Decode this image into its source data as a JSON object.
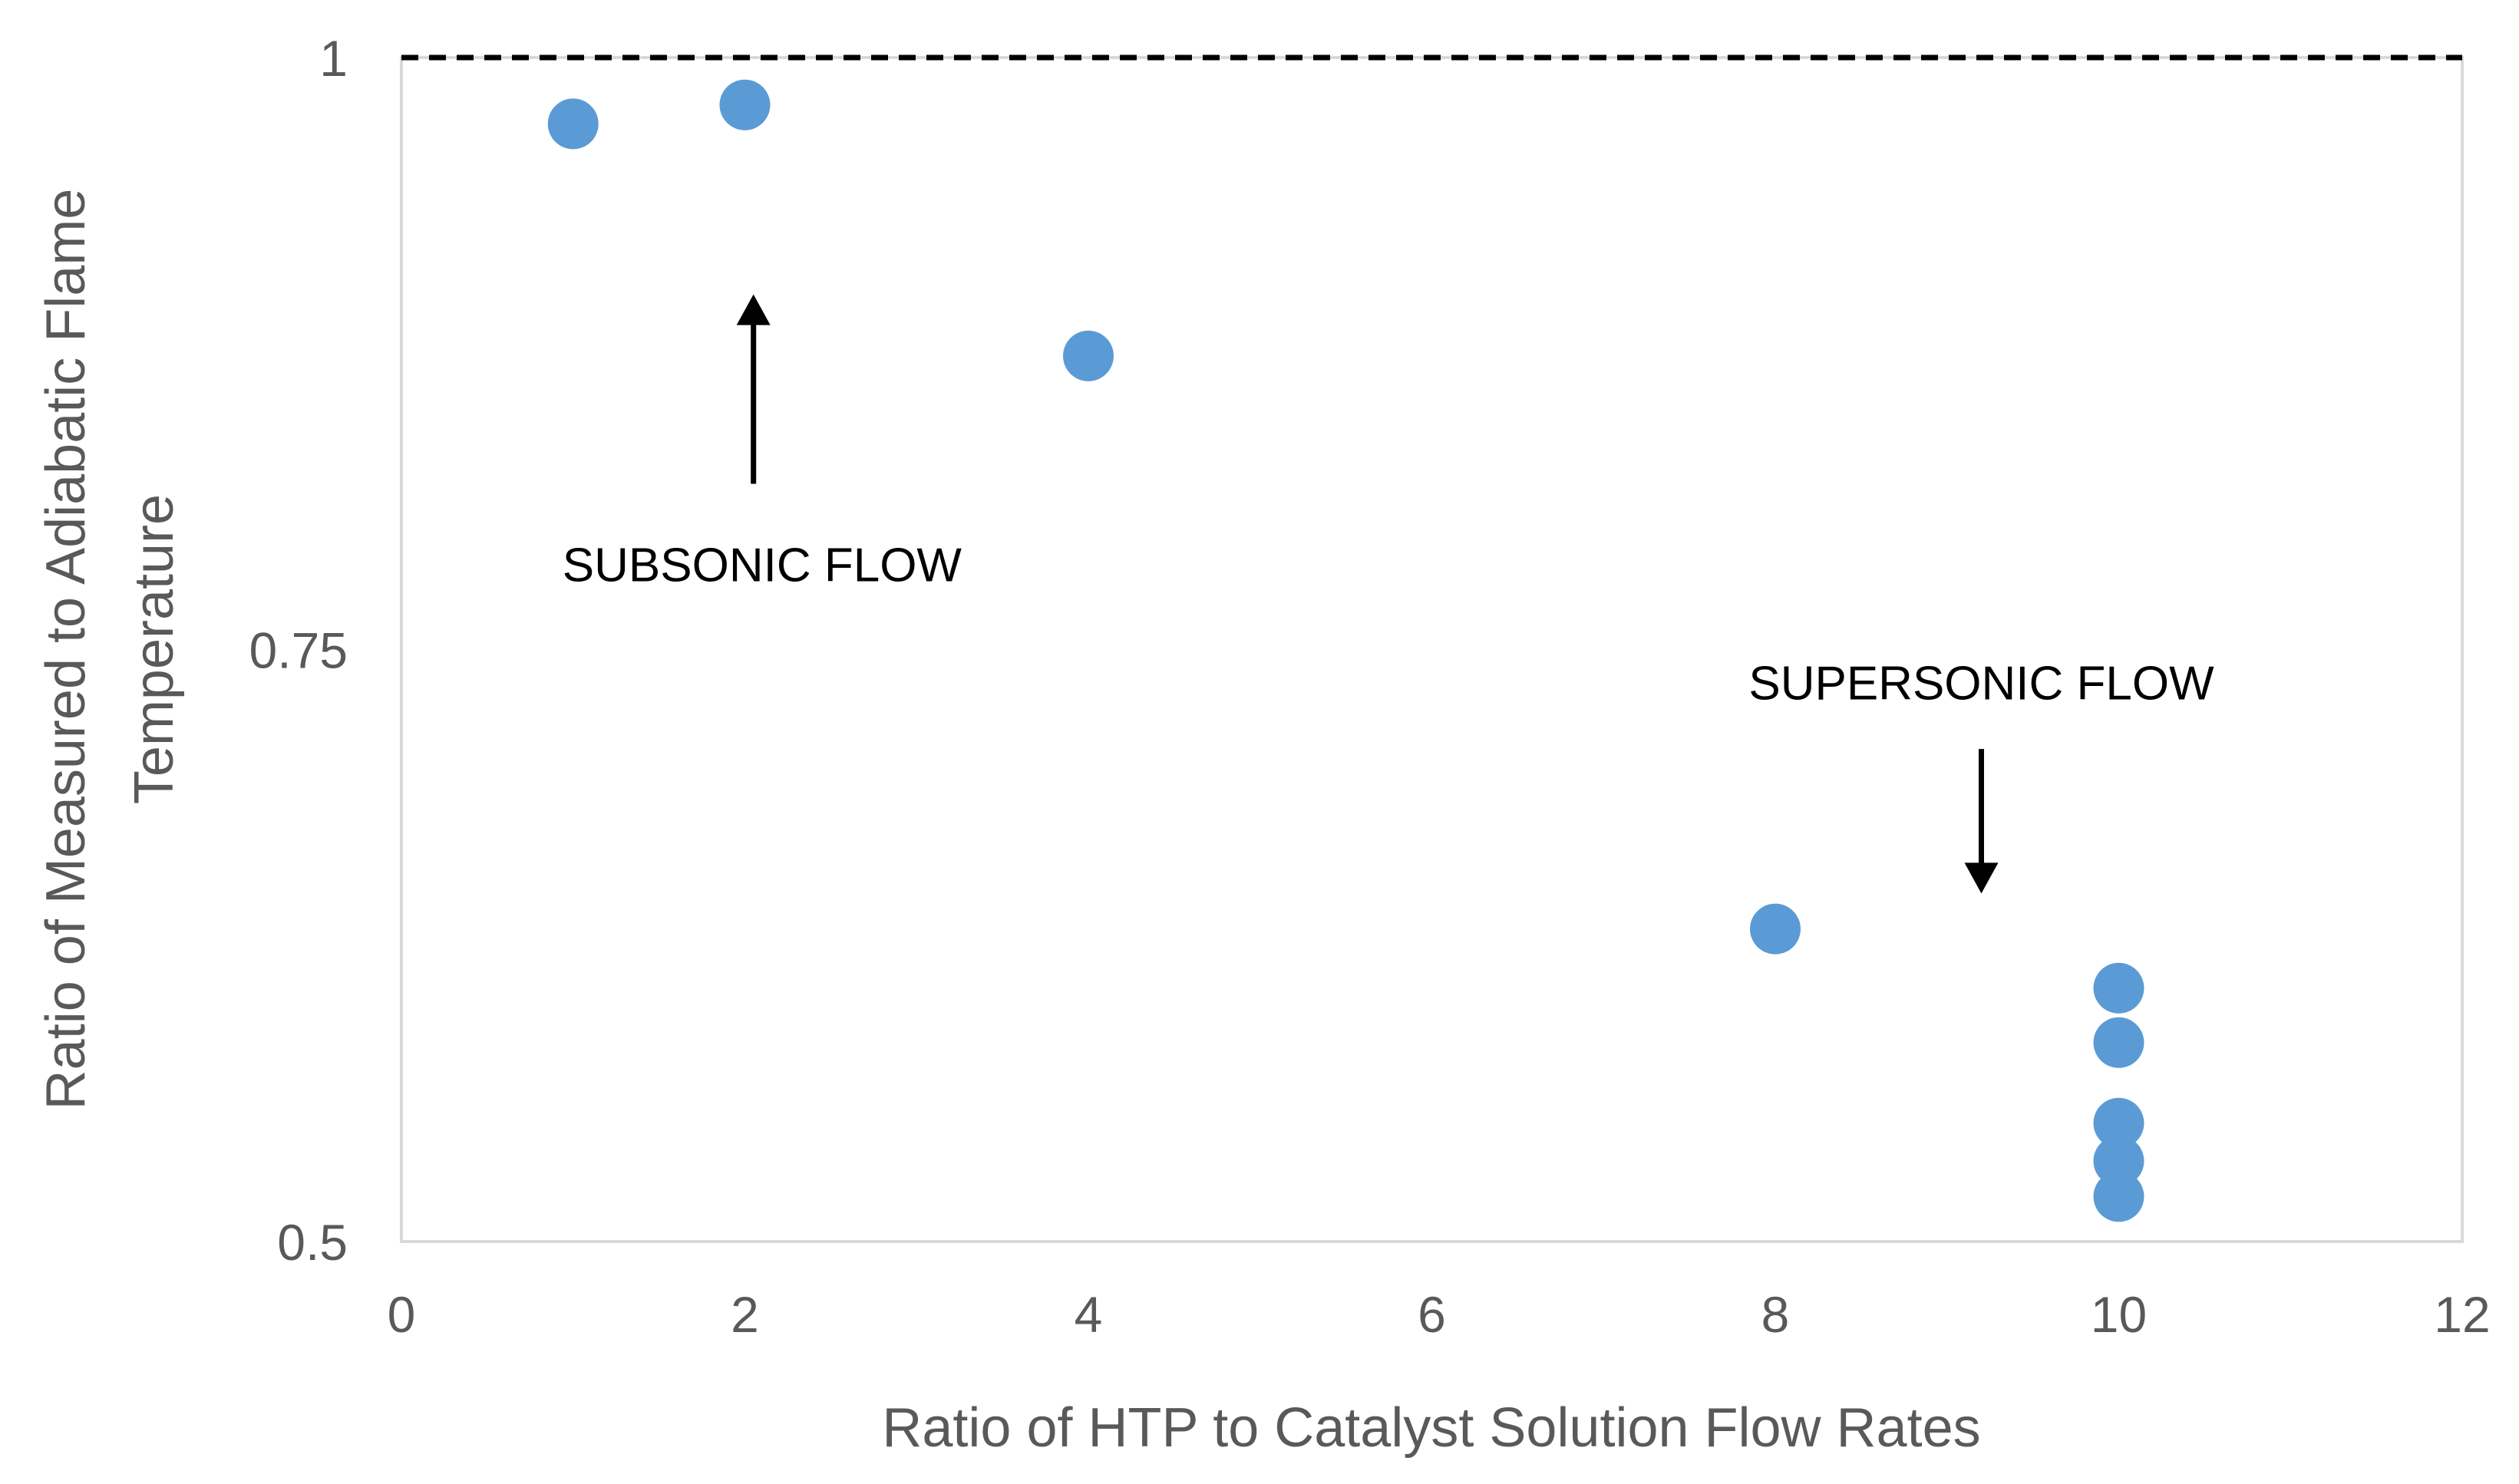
{
  "chart_data": {
    "type": "scatter",
    "title": "",
    "xlabel": "Ratio of HTP to Catalyst Solution Flow Rates",
    "ylabel_lines": [
      "Ratio of Measured to Adiabatic Flame",
      "Temperature"
    ],
    "xlim": [
      0,
      12
    ],
    "ylim": [
      0.5,
      1
    ],
    "xticks": [
      0,
      2,
      4,
      6,
      8,
      10,
      12
    ],
    "xtick_labels": [
      "0",
      "2",
      "4",
      "6",
      "8",
      "10",
      "12"
    ],
    "yticks": [
      0.5,
      0.75,
      1
    ],
    "ytick_labels": [
      "0.5",
      "0.75",
      "1"
    ],
    "grid": false,
    "legend": null,
    "point_color": "#5b9bd5",
    "reference_line": {
      "y": 1,
      "style": "dashed",
      "color": "#000000"
    },
    "series": [
      {
        "points": [
          {
            "x": 1,
            "y": 0.972
          },
          {
            "x": 2,
            "y": 0.98
          },
          {
            "x": 4,
            "y": 0.874
          },
          {
            "x": 8,
            "y": 0.632
          },
          {
            "x": 10,
            "y": 0.607
          },
          {
            "x": 10,
            "y": 0.584
          },
          {
            "x": 10,
            "y": 0.55
          },
          {
            "x": 10,
            "y": 0.534
          },
          {
            "x": 10,
            "y": 0.519
          }
        ]
      }
    ],
    "annotations": [
      {
        "text": "SUBSONIC FLOW",
        "arrow_x": 2.05,
        "arrow_from_y": 0.82,
        "arrow_to_y": 0.9,
        "text_x": 2.1,
        "text_y": 0.786
      },
      {
        "text": "SUPERSONIC FLOW",
        "arrow_x": 9.2,
        "arrow_from_y": 0.708,
        "arrow_to_y": 0.647,
        "text_x": 9.2,
        "text_y": 0.736
      }
    ]
  }
}
